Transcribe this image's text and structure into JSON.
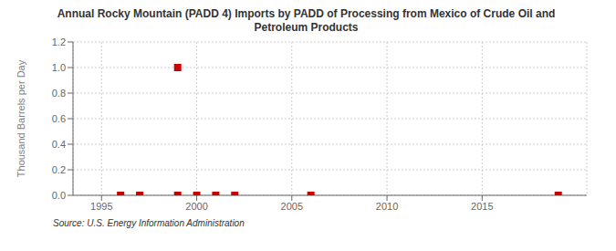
{
  "chart_data": {
    "type": "scatter",
    "title": "Annual Rocky Mountain (PADD 4) Imports by PADD of Processing from Mexico of Crude Oil and\nPetroleum Products",
    "ylabel": "Thousand Barrels per Day",
    "source": "Source: U.S. Energy Information Administration",
    "x": [
      1996,
      1997,
      1999,
      1999,
      2000,
      2001,
      2002,
      2006,
      2019
    ],
    "values": [
      0.0,
      0.0,
      0.0,
      1.0,
      0.0,
      0.0,
      0.0,
      0.0,
      0.0
    ],
    "color": "#cc0000",
    "marker": "square",
    "xlim": [
      1993.5,
      2020.5
    ],
    "ylim": [
      0.0,
      1.2
    ],
    "xticks": [
      1995,
      2000,
      2005,
      2010,
      2015
    ],
    "yticks": [
      {
        "value": 0,
        "label": "0.0"
      },
      0.2,
      0.4,
      0.6,
      0.8,
      {
        "value": 1,
        "label": "1.0"
      },
      1.2
    ],
    "grid": true
  }
}
